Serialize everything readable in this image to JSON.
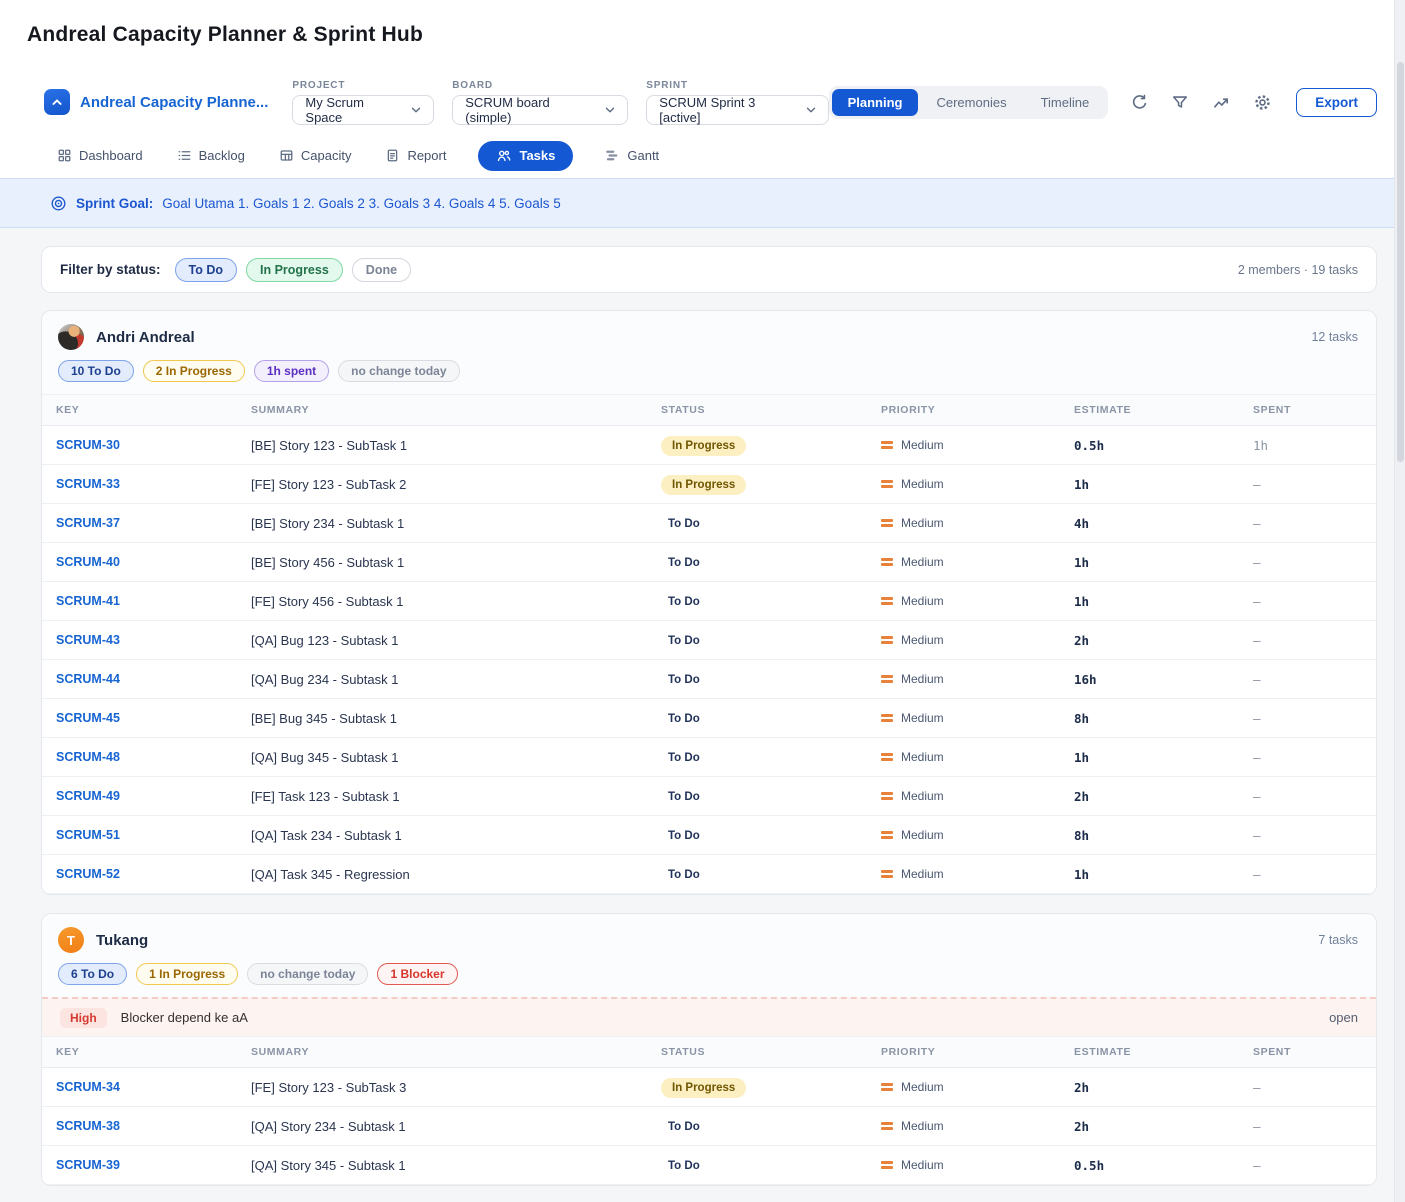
{
  "page": {
    "title": "Andreal Capacity Planner & Sprint Hub"
  },
  "header": {
    "app_name": "Andreal Capacity Planne...",
    "logo_icon": "chevron-up-icon",
    "selectors": [
      {
        "label": "PROJECT",
        "value": "My Scrum Space"
      },
      {
        "label": "BOARD",
        "value": "SCRUM board (simple)"
      },
      {
        "label": "SPRINT",
        "value": "SCRUM Sprint 3 [active]"
      }
    ],
    "view_tabs": [
      {
        "label": "Planning",
        "active": true
      },
      {
        "label": "Ceremonies",
        "active": false
      },
      {
        "label": "Timeline",
        "active": false
      }
    ],
    "icon_buttons": [
      "refresh",
      "filter",
      "trend",
      "settings"
    ],
    "export_label": "Export"
  },
  "nav": {
    "items": [
      {
        "label": "Dashboard",
        "icon": "grid",
        "active": false
      },
      {
        "label": "Backlog",
        "icon": "list",
        "active": false
      },
      {
        "label": "Capacity",
        "icon": "table",
        "active": false
      },
      {
        "label": "Report",
        "icon": "document",
        "active": false
      },
      {
        "label": "Tasks",
        "icon": "people",
        "active": true
      },
      {
        "label": "Gantt",
        "icon": "gantt",
        "active": false
      }
    ]
  },
  "sprint_goal": {
    "label": "Sprint Goal:",
    "text": "Goal Utama 1. Goals 1 2. Goals 2 3. Goals 3 4. Goals 4 5. Goals 5"
  },
  "filter_bar": {
    "label": "Filter by status:",
    "chips": [
      {
        "label": "To Do",
        "style": "blue"
      },
      {
        "label": "In Progress",
        "style": "green"
      },
      {
        "label": "Done",
        "style": "neutral"
      }
    ],
    "summary": "2 members · 19 tasks"
  },
  "table_columns": [
    "KEY",
    "SUMMARY",
    "STATUS",
    "PRIORITY",
    "ESTIMATE",
    "SPENT"
  ],
  "members": [
    {
      "name": "Andri Andreal",
      "avatar": "photo",
      "tasks_count": "12 tasks",
      "badges": [
        {
          "label": "10 To Do",
          "style": "blue"
        },
        {
          "label": "2 In Progress",
          "style": "amber"
        },
        {
          "label": "1h spent",
          "style": "purple"
        },
        {
          "label": "no change today",
          "style": "gray"
        }
      ],
      "rows": [
        {
          "key": "SCRUM-30",
          "summary": "[BE] Story 123 - SubTask 1",
          "status": "In Progress",
          "priority": "Medium",
          "estimate": "0.5h",
          "spent": "1h"
        },
        {
          "key": "SCRUM-33",
          "summary": "[FE] Story 123 - SubTask 2",
          "status": "In Progress",
          "priority": "Medium",
          "estimate": "1h",
          "spent": "–"
        },
        {
          "key": "SCRUM-37",
          "summary": "[BE] Story 234 - Subtask 1",
          "status": "To Do",
          "priority": "Medium",
          "estimate": "4h",
          "spent": "–"
        },
        {
          "key": "SCRUM-40",
          "summary": "[BE] Story 456 - Subtask 1",
          "status": "To Do",
          "priority": "Medium",
          "estimate": "1h",
          "spent": "–"
        },
        {
          "key": "SCRUM-41",
          "summary": "[FE] Story 456 - Subtask 1",
          "status": "To Do",
          "priority": "Medium",
          "estimate": "1h",
          "spent": "–"
        },
        {
          "key": "SCRUM-43",
          "summary": "[QA] Bug 123 - Subtask 1",
          "status": "To Do",
          "priority": "Medium",
          "estimate": "2h",
          "spent": "–"
        },
        {
          "key": "SCRUM-44",
          "summary": "[QA] Bug 234 - Subtask 1",
          "status": "To Do",
          "priority": "Medium",
          "estimate": "16h",
          "spent": "–"
        },
        {
          "key": "SCRUM-45",
          "summary": "[BE] Bug 345 - Subtask 1",
          "status": "To Do",
          "priority": "Medium",
          "estimate": "8h",
          "spent": "–"
        },
        {
          "key": "SCRUM-48",
          "summary": "[QA] Bug 345 - Subtask 1",
          "status": "To Do",
          "priority": "Medium",
          "estimate": "1h",
          "spent": "–"
        },
        {
          "key": "SCRUM-49",
          "summary": "[FE] Task 123 - Subtask 1",
          "status": "To Do",
          "priority": "Medium",
          "estimate": "2h",
          "spent": "–"
        },
        {
          "key": "SCRUM-51",
          "summary": "[QA] Task 234 - Subtask 1",
          "status": "To Do",
          "priority": "Medium",
          "estimate": "8h",
          "spent": "–"
        },
        {
          "key": "SCRUM-52",
          "summary": "[QA] Task 345 - Regression",
          "status": "To Do",
          "priority": "Medium",
          "estimate": "1h",
          "spent": "–"
        }
      ]
    },
    {
      "name": "Tukang",
      "avatar": "initial",
      "avatar_initial": "T",
      "tasks_count": "7 tasks",
      "badges": [
        {
          "label": "6 To Do",
          "style": "blue"
        },
        {
          "label": "1 In Progress",
          "style": "amber"
        },
        {
          "label": "no change today",
          "style": "gray"
        },
        {
          "label": "1 Blocker",
          "style": "red"
        }
      ],
      "blocker": {
        "severity": "High",
        "text": "Blocker depend ke aA",
        "state": "open"
      },
      "rows": [
        {
          "key": "SCRUM-34",
          "summary": "[FE] Story 123 - SubTask 3",
          "status": "In Progress",
          "priority": "Medium",
          "estimate": "2h",
          "spent": "–"
        },
        {
          "key": "SCRUM-38",
          "summary": "[QA] Story 234 - Subtask 1",
          "status": "To Do",
          "priority": "Medium",
          "estimate": "2h",
          "spent": "–"
        },
        {
          "key": "SCRUM-39",
          "summary": "[QA] Story 345 - Subtask 1",
          "status": "To Do",
          "priority": "Medium",
          "estimate": "0.5h",
          "spent": "–"
        }
      ]
    }
  ],
  "colors": {
    "accent_blue": "#1458d3",
    "link_blue": "#1765d2",
    "in_progress_badge_bg": "#fcf0c3",
    "priority_medium": "#e8823b",
    "goal_banner_bg": "#e9f0fd",
    "blocker_row_bg": "#fdf3f1",
    "main_bg": "#f5f6f8"
  }
}
